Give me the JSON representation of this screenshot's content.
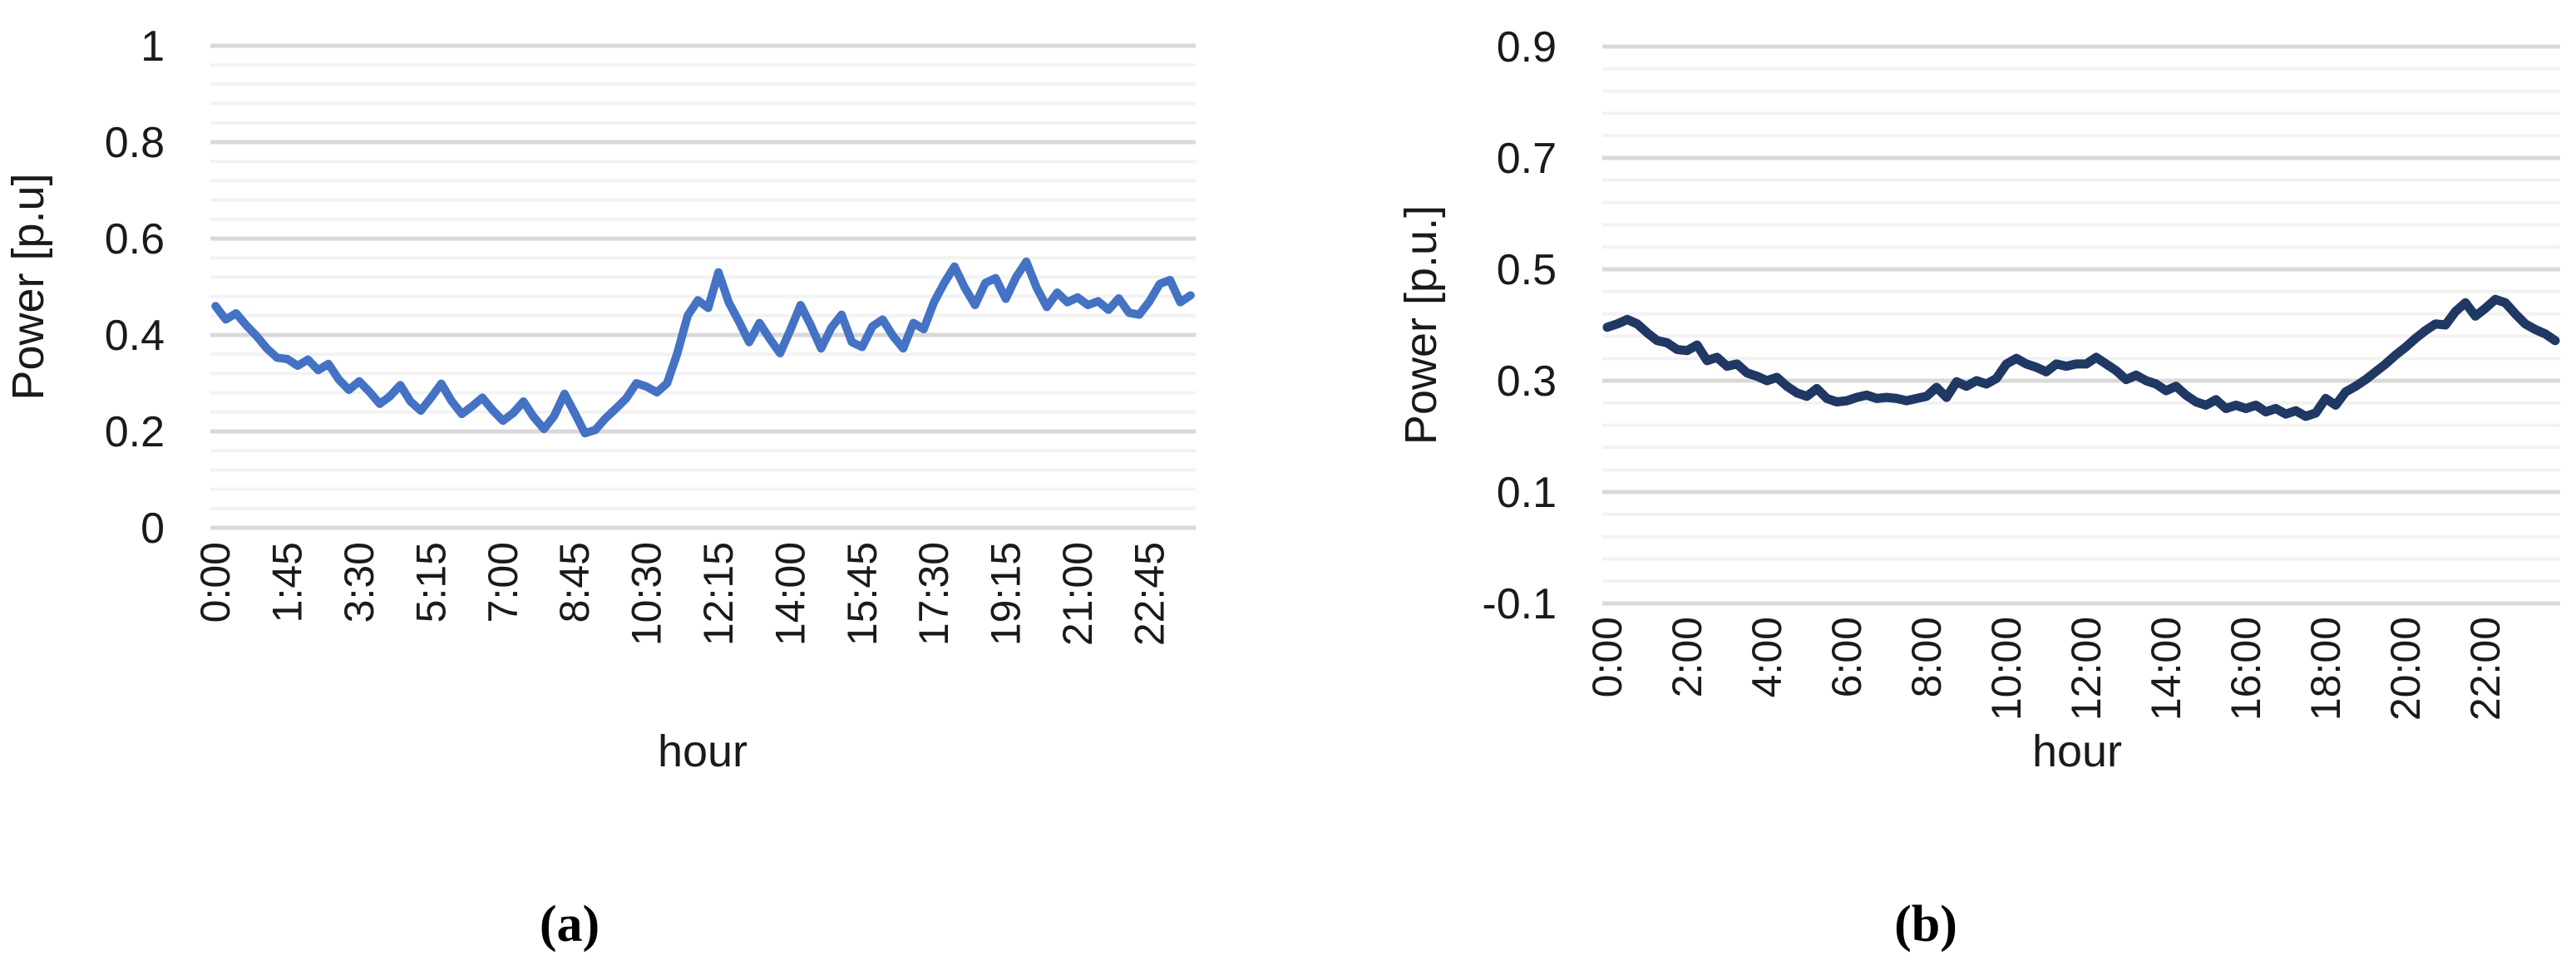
{
  "captions": {
    "a": "(a)",
    "b": "(b)"
  },
  "chart_data": [
    {
      "type": "line",
      "id": "a",
      "title": "",
      "xlabel": "hour",
      "ylabel": "Power [p.u]",
      "ylim": [
        0,
        1
      ],
      "y_major_unit": 0.2,
      "y_minor_unit": 0.04,
      "grid": "major+minor",
      "legend": "none",
      "line_color": "#4472C4",
      "y_tick_labels": [
        "1",
        "0.8",
        "0.6",
        "0.4",
        "0.2",
        "0"
      ],
      "x_tick_labels": [
        "0:00",
        "1:45",
        "3:30",
        "5:15",
        "7:00",
        "8:45",
        "10:30",
        "12:15",
        "14:00",
        "15:45",
        "17:30",
        "19:15",
        "21:00",
        "22:45"
      ],
      "x_tick_point_interval": 7,
      "x_start": "0:00",
      "x_step_minutes": 15,
      "n_points": 96,
      "values": [
        0.46,
        0.432,
        0.445,
        0.42,
        0.398,
        0.372,
        0.353,
        0.35,
        0.336,
        0.349,
        0.327,
        0.34,
        0.308,
        0.286,
        0.304,
        0.282,
        0.257,
        0.273,
        0.296,
        0.262,
        0.243,
        0.27,
        0.299,
        0.263,
        0.236,
        0.252,
        0.27,
        0.244,
        0.222,
        0.238,
        0.262,
        0.23,
        0.205,
        0.232,
        0.278,
        0.238,
        0.196,
        0.203,
        0.227,
        0.247,
        0.268,
        0.3,
        0.293,
        0.281,
        0.3,
        0.362,
        0.44,
        0.472,
        0.456,
        0.53,
        0.468,
        0.428,
        0.385,
        0.425,
        0.392,
        0.362,
        0.41,
        0.462,
        0.42,
        0.372,
        0.415,
        0.442,
        0.385,
        0.375,
        0.418,
        0.432,
        0.398,
        0.372,
        0.425,
        0.412,
        0.468,
        0.508,
        0.542,
        0.498,
        0.462,
        0.508,
        0.518,
        0.475,
        0.52,
        0.552,
        0.498,
        0.458,
        0.488,
        0.468,
        0.478,
        0.462,
        0.47,
        0.452,
        0.476,
        0.446,
        0.442,
        0.47,
        0.506,
        0.514,
        0.468,
        0.482
      ]
    },
    {
      "type": "line",
      "id": "b",
      "title": "",
      "xlabel": "hour",
      "ylabel": "Power [p.u.]",
      "ylim": [
        -0.1,
        0.9
      ],
      "y_major_unit": 0.2,
      "y_minor_unit": 0.04,
      "grid": "major+minor",
      "legend": "none",
      "line_color": "#1F3864",
      "y_tick_labels": [
        "0.9",
        "0.7",
        "0.5",
        "0.3",
        "0.1",
        "-0.1"
      ],
      "x_tick_labels": [
        "0:00",
        "2:00",
        "4:00",
        "6:00",
        "8:00",
        "10:00",
        "12:00",
        "14:00",
        "16:00",
        "18:00",
        "20:00",
        "22:00"
      ],
      "x_tick_point_interval": 8,
      "x_start": "0:00",
      "x_step_minutes": 15,
      "n_points": 96,
      "values": [
        0.396,
        0.402,
        0.41,
        0.402,
        0.386,
        0.372,
        0.368,
        0.356,
        0.354,
        0.364,
        0.336,
        0.342,
        0.326,
        0.33,
        0.314,
        0.308,
        0.3,
        0.306,
        0.29,
        0.278,
        0.272,
        0.286,
        0.268,
        0.262,
        0.264,
        0.27,
        0.274,
        0.268,
        0.27,
        0.268,
        0.264,
        0.268,
        0.272,
        0.288,
        0.27,
        0.298,
        0.29,
        0.3,
        0.294,
        0.304,
        0.33,
        0.34,
        0.33,
        0.324,
        0.316,
        0.33,
        0.326,
        0.33,
        0.33,
        0.342,
        0.33,
        0.318,
        0.302,
        0.31,
        0.3,
        0.294,
        0.282,
        0.29,
        0.274,
        0.262,
        0.256,
        0.266,
        0.25,
        0.256,
        0.25,
        0.256,
        0.244,
        0.25,
        0.24,
        0.246,
        0.236,
        0.242,
        0.268,
        0.256,
        0.28,
        0.29,
        0.302,
        0.316,
        0.33,
        0.346,
        0.36,
        0.376,
        0.39,
        0.402,
        0.4,
        0.424,
        0.44,
        0.416,
        0.43,
        0.446,
        0.44,
        0.42,
        0.402,
        0.392,
        0.384,
        0.372
      ]
    }
  ],
  "style_colors": {
    "major_gridline": "#d9d9d9",
    "minor_gridline": "#f2f2f2",
    "axis_text": "#1a1a1a"
  }
}
